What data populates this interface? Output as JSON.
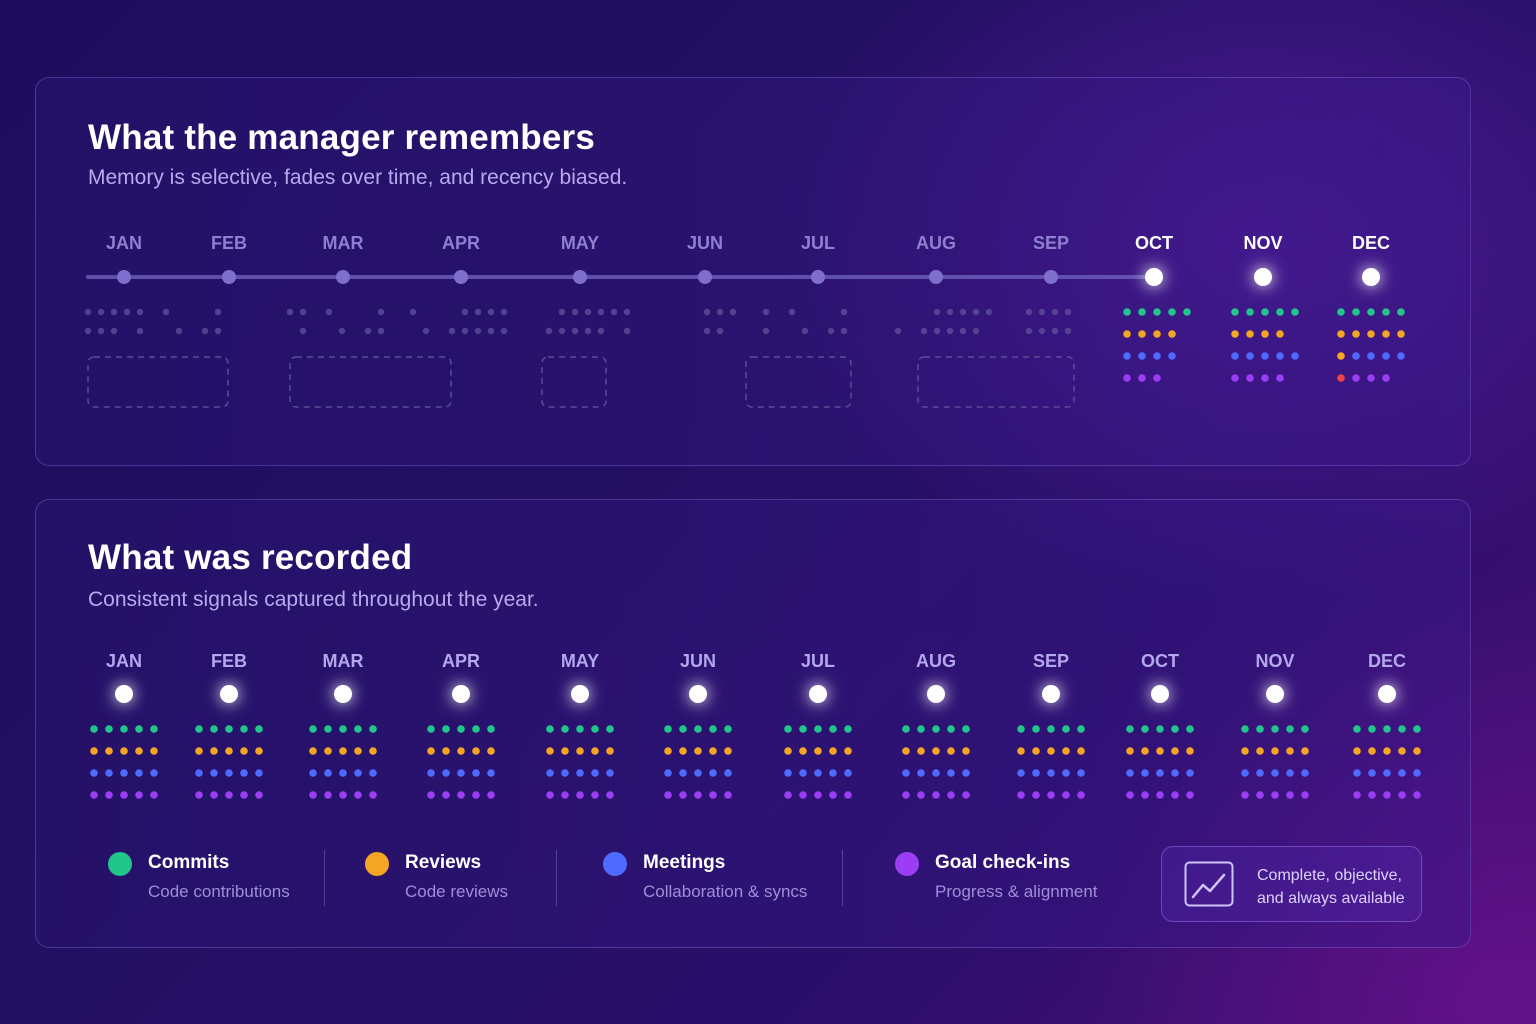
{
  "top_panel": {
    "title": "What the manager remembers",
    "subtitle": "Memory is selective, fades over time, and recency biased.",
    "months": [
      "JAN",
      "FEB",
      "MAR",
      "APR",
      "MAY",
      "JUN",
      "JUL",
      "AUG",
      "SEP",
      "OCT",
      "NOV",
      "DEC"
    ],
    "highlighted_months": [
      "OCT",
      "NOV",
      "DEC"
    ],
    "faded_months_with_missing_blocks": [
      "JAN",
      "MAR",
      "MAY",
      "JUL",
      "AUG"
    ],
    "recent_signals": {
      "OCT": {
        "commits": 5,
        "reviews": 4,
        "meetings": 4,
        "goal_checkins": 3
      },
      "NOV": {
        "commits": 5,
        "reviews": 4,
        "meetings": 5,
        "goal_checkins": 4
      },
      "DEC": {
        "commits": 5,
        "reviews": 5,
        "meetings": 5,
        "goal_checkins": 4
      }
    }
  },
  "bottom_panel": {
    "title": "What was recorded",
    "subtitle": "Consistent signals captured throughout the year.",
    "months": [
      "JAN",
      "FEB",
      "MAR",
      "APR",
      "MAY",
      "JUN",
      "JUL",
      "AUG",
      "SEP",
      "OCT",
      "NOV",
      "DEC"
    ],
    "signals_per_month": {
      "commits": 5,
      "reviews": 5,
      "meetings": 5,
      "goal_checkins": 5
    }
  },
  "legend": [
    {
      "label": "Commits",
      "description": "Code contributions",
      "color": "#22c58b"
    },
    {
      "label": "Reviews",
      "description": "Code reviews",
      "color": "#f5a524"
    },
    {
      "label": "Meetings",
      "description": "Collaboration & syncs",
      "color": "#4f6bff"
    },
    {
      "label": "Goal check-ins",
      "description": "Progress & alignment",
      "color": "#9b3df5"
    }
  ],
  "callout": {
    "text_line1": "Complete, objective,",
    "text_line2": "and always available",
    "icon": "trend-chart-icon"
  },
  "colors": {
    "commits": "#22c58b",
    "reviews": "#f5a524",
    "meetings": "#4f6bff",
    "goal_checkins": "#9b3df5",
    "outlier": "#ef4444",
    "timeline_active": "#8f83ff",
    "timeline_faded": "#6a5bb8"
  }
}
